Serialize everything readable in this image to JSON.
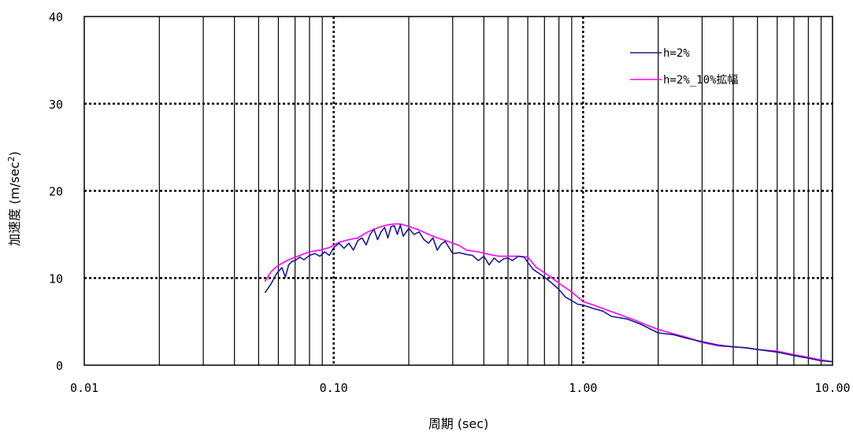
{
  "chart_data": {
    "type": "line",
    "title": "",
    "xlabel": "周期 (sec)",
    "ylabel_main": "加速度 (m/sec",
    "ylabel_sup": "2",
    "ylabel_end": ")",
    "x_scale": "log",
    "xlim": [
      0.01,
      10.0
    ],
    "ylim": [
      0,
      40
    ],
    "x_ticks": [
      "0.01",
      "0.10",
      "1.00",
      "10.00"
    ],
    "y_ticks": [
      "0",
      "10",
      "20",
      "30",
      "40"
    ],
    "grid": true,
    "legend_position": "top-right",
    "series": [
      {
        "name": "h=2%",
        "color": "#1a1a8c",
        "x": [
          0.053,
          0.056,
          0.059,
          0.062,
          0.064,
          0.066,
          0.068,
          0.07,
          0.073,
          0.076,
          0.08,
          0.084,
          0.088,
          0.092,
          0.096,
          0.1,
          0.105,
          0.11,
          0.115,
          0.12,
          0.125,
          0.13,
          0.135,
          0.14,
          0.145,
          0.15,
          0.155,
          0.16,
          0.165,
          0.17,
          0.175,
          0.18,
          0.185,
          0.19,
          0.2,
          0.21,
          0.22,
          0.23,
          0.24,
          0.25,
          0.26,
          0.27,
          0.28,
          0.3,
          0.32,
          0.34,
          0.36,
          0.38,
          0.4,
          0.42,
          0.44,
          0.46,
          0.48,
          0.5,
          0.52,
          0.55,
          0.58,
          0.6,
          0.63,
          0.66,
          0.7,
          0.75,
          0.8,
          0.85,
          0.9,
          0.95,
          1.0,
          1.1,
          1.2,
          1.3,
          1.5,
          1.7,
          2.0,
          2.3,
          2.6,
          3.0,
          3.5,
          4.0,
          4.5,
          5.0,
          6.0,
          7.0,
          8.0,
          9.0,
          10.0
        ],
        "values": [
          8.3,
          9.3,
          10.5,
          11.2,
          10.1,
          11.5,
          11.9,
          12.0,
          12.4,
          12.1,
          12.6,
          12.8,
          12.5,
          13.0,
          12.6,
          13.5,
          14.0,
          13.4,
          14.0,
          13.2,
          14.3,
          14.6,
          13.8,
          15.0,
          15.6,
          14.4,
          15.3,
          15.8,
          14.6,
          15.9,
          16.0,
          15.0,
          16.1,
          14.8,
          15.7,
          15.0,
          15.3,
          14.4,
          14.0,
          14.6,
          13.2,
          13.9,
          14.2,
          12.8,
          12.9,
          12.7,
          12.6,
          12.0,
          12.5,
          11.5,
          12.3,
          11.8,
          12.2,
          12.3,
          12.0,
          12.5,
          12.4,
          11.8,
          11.0,
          10.6,
          10.1,
          9.4,
          8.7,
          7.8,
          7.4,
          7.0,
          6.9,
          6.5,
          6.2,
          5.6,
          5.3,
          4.7,
          3.7,
          3.5,
          3.1,
          2.7,
          2.3,
          2.1,
          2.0,
          1.8,
          1.5,
          1.1,
          0.8,
          0.5,
          0.4
        ]
      },
      {
        "name": "h=2%_10%拡幅",
        "color": "#ff00ff",
        "x": [
          0.053,
          0.056,
          0.059,
          0.062,
          0.066,
          0.07,
          0.075,
          0.08,
          0.088,
          0.096,
          0.105,
          0.115,
          0.125,
          0.135,
          0.145,
          0.155,
          0.165,
          0.175,
          0.185,
          0.2,
          0.22,
          0.24,
          0.26,
          0.28,
          0.3,
          0.32,
          0.34,
          0.38,
          0.42,
          0.46,
          0.5,
          0.55,
          0.6,
          0.65,
          0.7,
          0.75,
          0.8,
          0.9,
          1.0,
          1.1,
          1.2,
          1.4,
          1.6,
          1.8,
          2.0,
          2.3,
          2.6,
          3.0,
          3.5,
          4.0,
          4.5,
          5.0,
          6.0,
          7.0,
          8.0,
          9.0,
          10.0
        ],
        "values": [
          9.6,
          10.7,
          11.3,
          11.7,
          12.1,
          12.4,
          12.7,
          13.0,
          13.2,
          13.5,
          14.1,
          14.4,
          14.6,
          15.2,
          15.6,
          15.9,
          16.1,
          16.2,
          16.2,
          15.9,
          15.5,
          15.0,
          14.6,
          14.3,
          14.0,
          13.7,
          13.2,
          13.0,
          12.7,
          12.5,
          12.5,
          12.5,
          12.4,
          11.2,
          10.6,
          10.0,
          9.4,
          8.4,
          7.3,
          6.9,
          6.5,
          5.8,
          5.2,
          4.6,
          4.1,
          3.6,
          3.2,
          2.6,
          2.2,
          2.1,
          2.0,
          1.8,
          1.6,
          1.2,
          0.9,
          0.6,
          0.4
        ]
      }
    ]
  }
}
